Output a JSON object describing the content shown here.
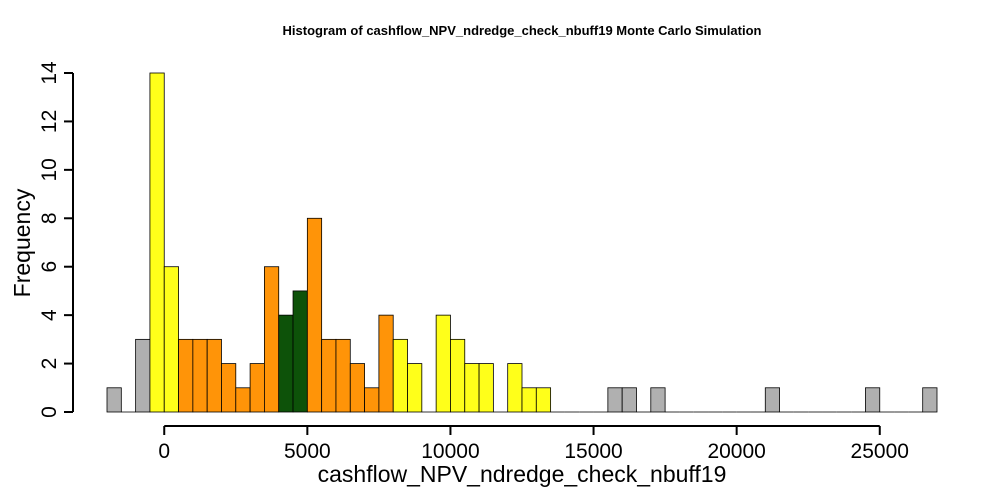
{
  "chart_data": {
    "type": "bar",
    "title": "Histogram of  cashflow_NPV_ndredge_check_nbuff19  Monte Carlo Simulation",
    "xlabel": "cashflow_NPV_ndredge_check_nbuff19",
    "ylabel": "Frequency",
    "bin_width": 500,
    "xlim": [
      -2000,
      27000
    ],
    "ylim": [
      0,
      14
    ],
    "x_ticks": [
      0,
      5000,
      10000,
      15000,
      20000,
      25000
    ],
    "y_ticks": [
      0,
      2,
      4,
      6,
      8,
      10,
      12,
      14
    ],
    "grid": false,
    "colors": {
      "gray": "#b0b0b0",
      "yellow": "#ffff1a",
      "orange": "#ff9408",
      "green": "#0d5209"
    },
    "bins": [
      {
        "start": -2000,
        "end": -1500,
        "count": 1,
        "color": "gray"
      },
      {
        "start": -1500,
        "end": -1000,
        "count": 0,
        "color": "gray"
      },
      {
        "start": -1000,
        "end": -500,
        "count": 3,
        "color": "gray"
      },
      {
        "start": -500,
        "end": 0,
        "count": 14,
        "color": "yellow"
      },
      {
        "start": 0,
        "end": 500,
        "count": 6,
        "color": "yellow"
      },
      {
        "start": 500,
        "end": 1000,
        "count": 3,
        "color": "orange"
      },
      {
        "start": 1000,
        "end": 1500,
        "count": 3,
        "color": "orange"
      },
      {
        "start": 1500,
        "end": 2000,
        "count": 3,
        "color": "orange"
      },
      {
        "start": 2000,
        "end": 2500,
        "count": 2,
        "color": "orange"
      },
      {
        "start": 2500,
        "end": 3000,
        "count": 1,
        "color": "orange"
      },
      {
        "start": 3000,
        "end": 3500,
        "count": 2,
        "color": "orange"
      },
      {
        "start": 3500,
        "end": 4000,
        "count": 6,
        "color": "orange"
      },
      {
        "start": 4000,
        "end": 4500,
        "count": 4,
        "color": "green"
      },
      {
        "start": 4500,
        "end": 5000,
        "count": 5,
        "color": "green"
      },
      {
        "start": 5000,
        "end": 5500,
        "count": 8,
        "color": "orange"
      },
      {
        "start": 5500,
        "end": 6000,
        "count": 3,
        "color": "orange"
      },
      {
        "start": 6000,
        "end": 6500,
        "count": 3,
        "color": "orange"
      },
      {
        "start": 6500,
        "end": 7000,
        "count": 2,
        "color": "orange"
      },
      {
        "start": 7000,
        "end": 7500,
        "count": 1,
        "color": "orange"
      },
      {
        "start": 7500,
        "end": 8000,
        "count": 4,
        "color": "orange"
      },
      {
        "start": 8000,
        "end": 8500,
        "count": 3,
        "color": "yellow"
      },
      {
        "start": 8500,
        "end": 9000,
        "count": 2,
        "color": "yellow"
      },
      {
        "start": 9000,
        "end": 9500,
        "count": 0,
        "color": "yellow"
      },
      {
        "start": 9500,
        "end": 10000,
        "count": 4,
        "color": "yellow"
      },
      {
        "start": 10000,
        "end": 10500,
        "count": 3,
        "color": "yellow"
      },
      {
        "start": 10500,
        "end": 11000,
        "count": 2,
        "color": "yellow"
      },
      {
        "start": 11000,
        "end": 11500,
        "count": 2,
        "color": "yellow"
      },
      {
        "start": 11500,
        "end": 12000,
        "count": 0,
        "color": "yellow"
      },
      {
        "start": 12000,
        "end": 12500,
        "count": 2,
        "color": "yellow"
      },
      {
        "start": 12500,
        "end": 13000,
        "count": 1,
        "color": "yellow"
      },
      {
        "start": 13000,
        "end": 13500,
        "count": 1,
        "color": "yellow"
      },
      {
        "start": 13500,
        "end": 14000,
        "count": 0,
        "color": "gray"
      },
      {
        "start": 14000,
        "end": 14500,
        "count": 0,
        "color": "gray"
      },
      {
        "start": 14500,
        "end": 15000,
        "count": 0,
        "color": "gray"
      },
      {
        "start": 15000,
        "end": 15500,
        "count": 0,
        "color": "gray"
      },
      {
        "start": 15500,
        "end": 16000,
        "count": 1,
        "color": "gray"
      },
      {
        "start": 16000,
        "end": 16500,
        "count": 1,
        "color": "gray"
      },
      {
        "start": 16500,
        "end": 17000,
        "count": 0,
        "color": "gray"
      },
      {
        "start": 17000,
        "end": 17500,
        "count": 1,
        "color": "gray"
      },
      {
        "start": 17500,
        "end": 18000,
        "count": 0,
        "color": "gray"
      },
      {
        "start": 18000,
        "end": 18500,
        "count": 0,
        "color": "gray"
      },
      {
        "start": 18500,
        "end": 19000,
        "count": 0,
        "color": "gray"
      },
      {
        "start": 19000,
        "end": 19500,
        "count": 0,
        "color": "gray"
      },
      {
        "start": 19500,
        "end": 20000,
        "count": 0,
        "color": "gray"
      },
      {
        "start": 20000,
        "end": 20500,
        "count": 0,
        "color": "gray"
      },
      {
        "start": 20500,
        "end": 21000,
        "count": 0,
        "color": "gray"
      },
      {
        "start": 21000,
        "end": 21500,
        "count": 1,
        "color": "gray"
      },
      {
        "start": 21500,
        "end": 22000,
        "count": 0,
        "color": "gray"
      },
      {
        "start": 22000,
        "end": 22500,
        "count": 0,
        "color": "gray"
      },
      {
        "start": 22500,
        "end": 23000,
        "count": 0,
        "color": "gray"
      },
      {
        "start": 23000,
        "end": 23500,
        "count": 0,
        "color": "gray"
      },
      {
        "start": 23500,
        "end": 24000,
        "count": 0,
        "color": "gray"
      },
      {
        "start": 24000,
        "end": 24500,
        "count": 0,
        "color": "gray"
      },
      {
        "start": 24500,
        "end": 25000,
        "count": 1,
        "color": "gray"
      },
      {
        "start": 25000,
        "end": 25500,
        "count": 0,
        "color": "gray"
      },
      {
        "start": 25500,
        "end": 26000,
        "count": 0,
        "color": "gray"
      },
      {
        "start": 26000,
        "end": 26500,
        "count": 0,
        "color": "gray"
      },
      {
        "start": 26500,
        "end": 27000,
        "count": 1,
        "color": "gray"
      }
    ]
  }
}
